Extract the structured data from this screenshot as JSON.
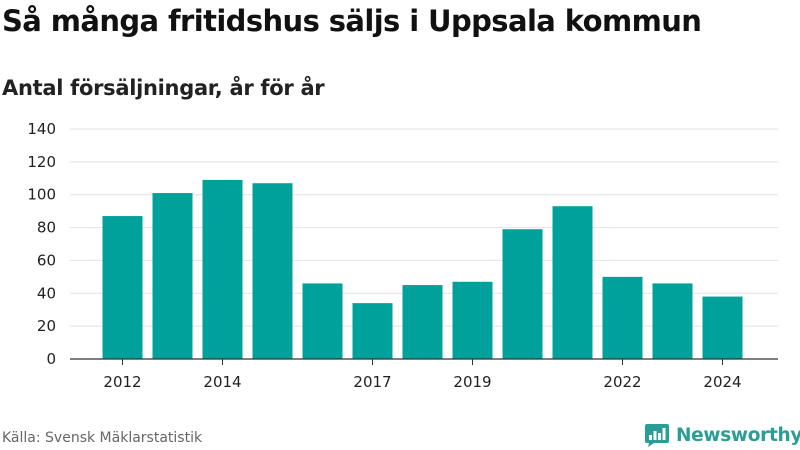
{
  "title": "Så många fritidshus säljs i Uppsala kommun",
  "subtitle": "Antal försäljningar, år för år",
  "source": "Källa: Svensk Mäklarstatistik",
  "brand": {
    "name": "Newsworthy",
    "icon": "newsworthy-logo-icon",
    "color": "#2a9e96"
  },
  "chart_data": {
    "type": "bar",
    "title": "Så många fritidshus säljs i Uppsala kommun",
    "subtitle": "Antal försäljningar, år för år",
    "xlabel": "",
    "ylabel": "",
    "categories": [
      2012,
      2013,
      2014,
      2015,
      2016,
      2017,
      2018,
      2019,
      2020,
      2021,
      2022,
      2023,
      2024
    ],
    "values": [
      87,
      101,
      109,
      107,
      46,
      34,
      45,
      47,
      79,
      93,
      50,
      46,
      38
    ],
    "x_tick_labels": [
      "2012",
      "2014",
      "2017",
      "2019",
      "2022",
      "2024"
    ],
    "y_ticks": [
      0,
      20,
      40,
      60,
      80,
      100,
      120,
      140
    ],
    "ylim": [
      0,
      140
    ],
    "bar_color": "#00a19a",
    "grid": true,
    "legend": "none"
  }
}
